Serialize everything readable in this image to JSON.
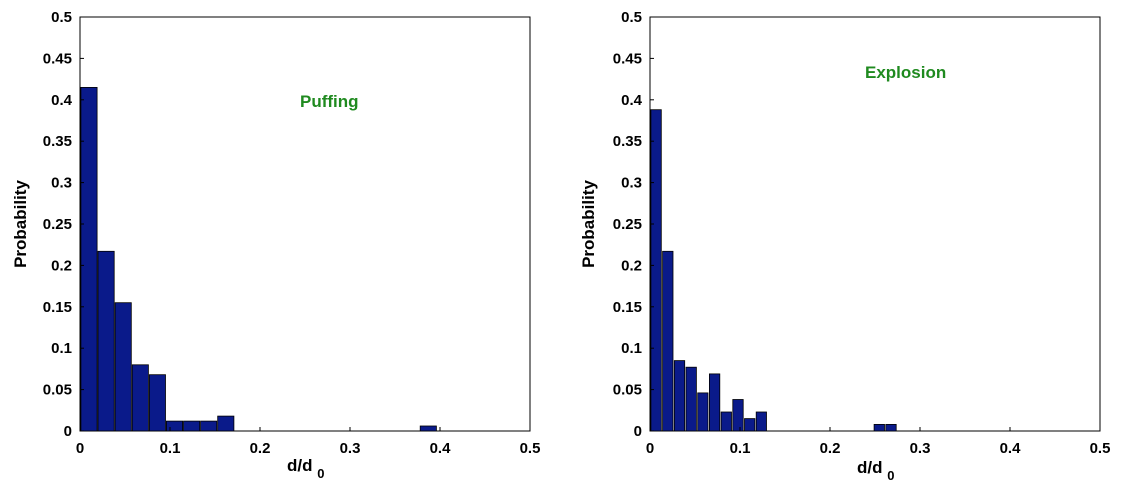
{
  "colors": {
    "bar_fill": "#0a1a8a",
    "bar_stroke": "#000000",
    "annotation": "#1f8a1f"
  },
  "chart_data": [
    {
      "type": "bar",
      "annotation": "Puffing",
      "xlabel_main": "d/d",
      "xlabel_sub": "0",
      "ylabel": "Probability",
      "xlim": [
        0,
        0.5
      ],
      "ylim": [
        0,
        0.5
      ],
      "bin_width": 0.018,
      "xticks": [
        "0",
        "0.1",
        "0.2",
        "0.3",
        "0.4",
        "0.5"
      ],
      "yticks": [
        "0",
        "0.05",
        "0.1",
        "0.15",
        "0.2",
        "0.25",
        "0.3",
        "0.35",
        "0.4",
        "0.45",
        "0.5"
      ],
      "x": [
        0.001,
        0.02,
        0.039,
        0.058,
        0.077,
        0.096,
        0.115,
        0.134,
        0.153,
        0.378
      ],
      "values": [
        0.415,
        0.217,
        0.155,
        0.08,
        0.068,
        0.012,
        0.012,
        0.012,
        0.018,
        0.006
      ],
      "grid": false
    },
    {
      "type": "bar",
      "annotation": "Explosion",
      "xlabel_main": "d/d",
      "xlabel_sub": "0",
      "ylabel": "Probability",
      "xlim": [
        0,
        0.5
      ],
      "ylim": [
        0,
        0.5
      ],
      "bin_width": 0.0115,
      "xticks": [
        "0",
        "0.1",
        "0.2",
        "0.3",
        "0.4",
        "0.5"
      ],
      "yticks": [
        "0",
        "0.05",
        "0.1",
        "0.15",
        "0.2",
        "0.25",
        "0.3",
        "0.35",
        "0.4",
        "0.45",
        "0.5"
      ],
      "x": [
        0.001,
        0.014,
        0.027,
        0.04,
        0.053,
        0.066,
        0.079,
        0.092,
        0.105,
        0.118,
        0.249,
        0.262
      ],
      "values": [
        0.388,
        0.217,
        0.085,
        0.077,
        0.046,
        0.069,
        0.023,
        0.038,
        0.015,
        0.023,
        0.008,
        0.008
      ],
      "grid": false
    }
  ]
}
